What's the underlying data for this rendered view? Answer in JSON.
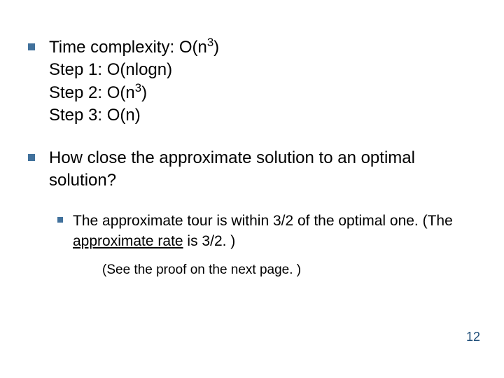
{
  "bullet_color": "#41719c",
  "text_color": "#000000",
  "pagenum_color": "#1f4e79",
  "items": [
    {
      "lines": [
        {
          "segments": [
            {
              "t": "Time complexity: O(n"
            },
            {
              "t": "3",
              "sup": true
            },
            {
              "t": ")"
            }
          ]
        },
        {
          "segments": [
            {
              "t": "Step 1: O(nlogn)"
            }
          ]
        },
        {
          "segments": [
            {
              "t": "Step 2: O(n"
            },
            {
              "t": "3",
              "sup": true
            },
            {
              "t": ")"
            }
          ]
        },
        {
          "segments": [
            {
              "t": "Step 3: O(n)"
            }
          ]
        }
      ]
    },
    {
      "lines": [
        {
          "segments": [
            {
              "t": "How close the approximate solution to an optimal solution?"
            }
          ]
        }
      ],
      "sub": {
        "segments": [
          {
            "t": "The approximate tour is within 3/2 of the optimal one. (The "
          },
          {
            "t": "approximate rate",
            "u": true
          },
          {
            "t": " is 3/2. )"
          }
        ],
        "note": "(See the proof on the next page. )"
      }
    }
  ],
  "page_number": "12"
}
